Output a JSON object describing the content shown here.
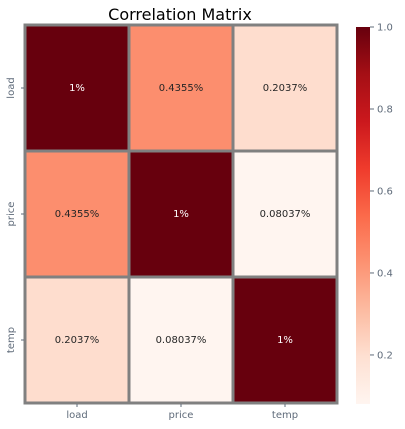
{
  "chart_data": {
    "type": "heatmap",
    "title": "Correlation Matrix",
    "x_labels": [
      "load",
      "price",
      "temp"
    ],
    "y_labels": [
      "load",
      "price",
      "temp"
    ],
    "values": [
      [
        1.0,
        0.4355,
        0.2037
      ],
      [
        0.4355,
        1.0,
        0.08037
      ],
      [
        0.2037,
        0.08037,
        1.0
      ]
    ],
    "cell_labels": [
      [
        "1%",
        "0.4355%",
        "0.2037%"
      ],
      [
        "0.4355%",
        "1%",
        "0.08037%"
      ],
      [
        "0.2037%",
        "0.08037%",
        "1%"
      ]
    ],
    "colormap": "Reds",
    "vmin": 0.08037,
    "vmax": 1.0,
    "colorbar_ticks": [
      0.2,
      0.4,
      0.6,
      0.8,
      1.0
    ],
    "colorbar_tick_labels": [
      "0.2",
      "0.4",
      "0.6",
      "0.8",
      "1.0"
    ],
    "cell_border_color": "#808080",
    "light_text_color": "#ffffff",
    "dark_text_color": "#262626"
  }
}
